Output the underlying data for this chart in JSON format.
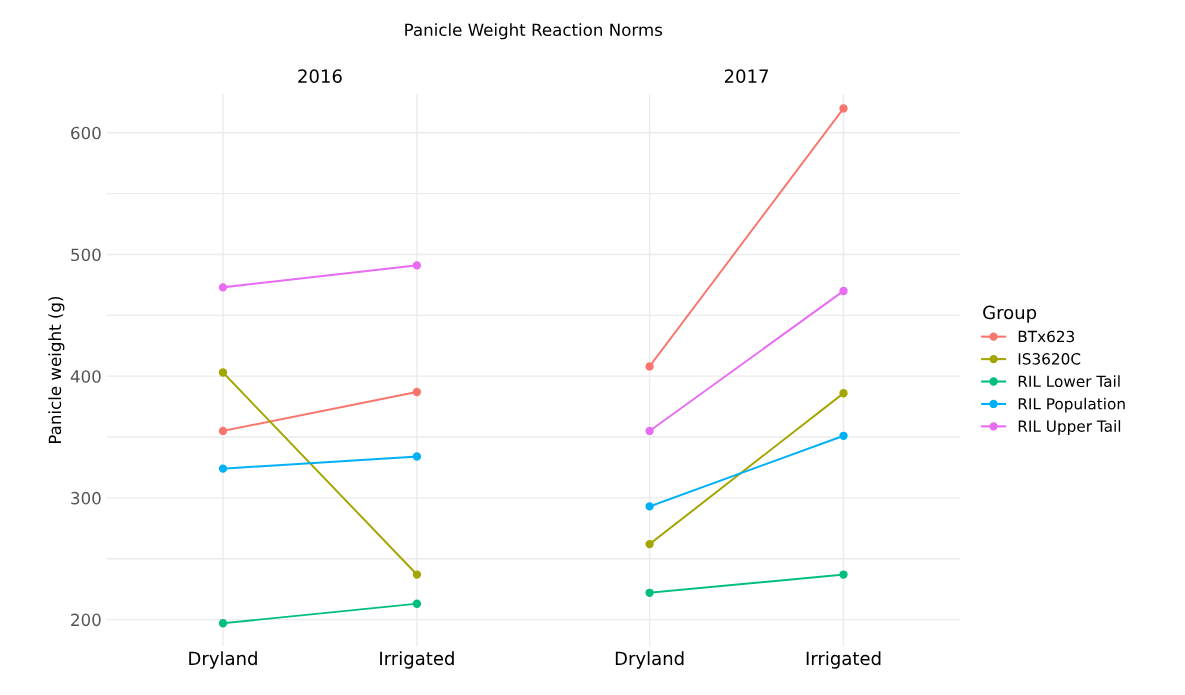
{
  "chart_data": [
    {
      "type": "line",
      "title": "2016",
      "categories": [
        "Dryland",
        "Irrigated"
      ],
      "ylabel": "Panicle weight (g)",
      "ylim": [
        178,
        632
      ],
      "yticks": [
        200,
        {
          "value": 250,
          "label": null
        },
        300,
        {
          "value": 350,
          "label": null
        },
        400,
        {
          "value": 450,
          "label": null
        },
        500,
        {
          "value": 550,
          "label": null
        },
        600
      ],
      "grid": true,
      "marker": "circle",
      "line_style": "solid",
      "series": [
        {
          "color": "#f8766d",
          "values": [
            355,
            387
          ]
        },
        {
          "color": "#a3a500",
          "values": [
            403,
            237
          ]
        },
        {
          "color": "#00bf7d",
          "values": [
            197,
            213
          ]
        },
        {
          "color": "#00b0f6",
          "values": [
            324,
            334
          ]
        },
        {
          "color": "#e76bf3",
          "values": [
            473,
            491
          ]
        }
      ]
    },
    {
      "type": "line",
      "title": "2017",
      "categories": [
        "Dryland",
        "Irrigated"
      ],
      "ylim": [
        178,
        632
      ],
      "yticks": [
        200,
        {
          "value": 250,
          "label": null
        },
        300,
        {
          "value": 350,
          "label": null
        },
        400,
        {
          "value": 450,
          "label": null
        },
        500,
        {
          "value": 550,
          "label": null
        },
        600
      ],
      "tick_labels": "x",
      "grid": true,
      "marker": "circle",
      "line_style": "solid",
      "legend": "right",
      "legend_title": "Group",
      "annotations": [
        "Panicle Weight Reaction Norms"
      ],
      "series": [
        {
          "name": "BTx623",
          "color": "#f8766d",
          "values": [
            408,
            620
          ]
        },
        {
          "name": "IS3620C",
          "color": "#a3a500",
          "values": [
            262,
            386
          ]
        },
        {
          "name": "RIL Lower Tail",
          "color": "#00bf7d",
          "values": [
            222,
            237
          ]
        },
        {
          "name": "RIL Population",
          "color": "#00b0f6",
          "values": [
            293,
            351
          ]
        },
        {
          "name": "RIL Upper Tail",
          "color": "#e76bf3",
          "values": [
            355,
            470
          ]
        }
      ]
    }
  ]
}
